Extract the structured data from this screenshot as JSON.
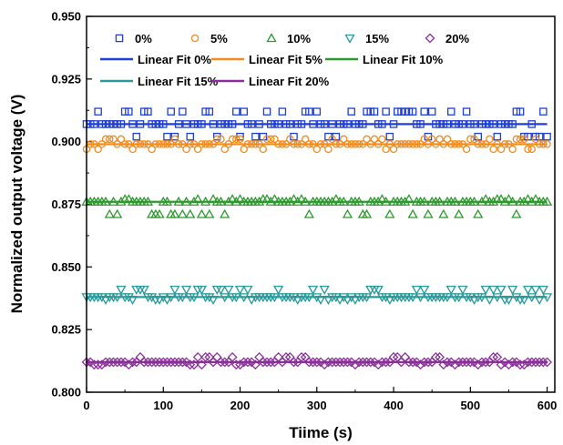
{
  "chart_data": {
    "type": "scatter",
    "xlabel": "Tiime (s)",
    "ylabel": "Normalized output voltage (V)",
    "xlim": [
      0,
      610
    ],
    "ylim": [
      0.8,
      0.95
    ],
    "x_ticks": [
      "0",
      "100",
      "200",
      "300",
      "400",
      "500",
      "600"
    ],
    "y_ticks": [
      "0.800",
      "0.825",
      "0.850",
      "0.875",
      "0.900",
      "0.925",
      "0.950"
    ],
    "grid": false,
    "legend_position": "top",
    "series": [
      {
        "name": "0%",
        "marker": "square",
        "color": "#1f3fd6",
        "fit_label": "Linear Fit 0%",
        "fit_value": 0.907,
        "value_min": 0.902,
        "value_max": 0.912,
        "x_start": 0,
        "x_end": 600,
        "x_step": 5
      },
      {
        "name": "5%",
        "marker": "circle",
        "color": "#f28a1c",
        "fit_label": "Linear Fit 5%",
        "fit_value": 0.899,
        "value_min": 0.897,
        "value_max": 0.901,
        "x_start": 0,
        "x_end": 600,
        "x_step": 5
      },
      {
        "name": "10%",
        "marker": "triangle-up",
        "color": "#2e9a2e",
        "fit_label": "Linear Fit 10%",
        "fit_value": 0.876,
        "value_min": 0.871,
        "value_max": 0.877,
        "x_start": 0,
        "x_end": 600,
        "x_step": 5
      },
      {
        "name": "15%",
        "marker": "triangle-down",
        "color": "#2a9a9a",
        "fit_label": "Linear Fit 15%",
        "fit_value": 0.838,
        "value_min": 0.837,
        "value_max": 0.841,
        "x_start": 0,
        "x_end": 600,
        "x_step": 5
      },
      {
        "name": "20%",
        "marker": "diamond",
        "color": "#8a2f9a",
        "fit_label": "Linear Fit 20%",
        "fit_value": 0.812,
        "value_min": 0.811,
        "value_max": 0.814,
        "x_start": 0,
        "x_end": 600,
        "x_step": 5
      }
    ]
  }
}
